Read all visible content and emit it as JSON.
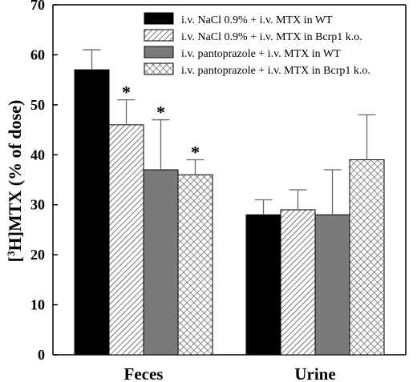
{
  "chart_data": {
    "type": "bar",
    "categories": [
      "Feces",
      "Urine"
    ],
    "ylabel": "[³H]MTX (% of dose)",
    "ylabel_parts": {
      "open": "[",
      "sup": "3",
      "rest": "H]MTX (% of dose)"
    },
    "ylim": [
      0,
      70
    ],
    "yticks": [
      0,
      10,
      20,
      30,
      40,
      50,
      60,
      70
    ],
    "legend_position": "top-right",
    "series": [
      {
        "name": "i.v. NaCl 0.9% + i.v. MTX in WT",
        "values": [
          57,
          28
        ],
        "errors": [
          4,
          3
        ],
        "pattern": "solid-black"
      },
      {
        "name": "i.v. NaCl 0.9% + i.v. MTX in Bcrp1 k.o.",
        "values": [
          46,
          29
        ],
        "errors": [
          5,
          4
        ],
        "pattern": "diagonal-hatch"
      },
      {
        "name": "i.v. pantoprazole + i.v. MTX in WT",
        "values": [
          37,
          28
        ],
        "errors": [
          10,
          9
        ],
        "pattern": "solid-gray"
      },
      {
        "name": "i.v. pantoprazole + i.v. MTX in Bcrp1 k.o.",
        "values": [
          36,
          39
        ],
        "errors": [
          3,
          9
        ],
        "pattern": "crosshatch"
      }
    ],
    "significance_marker": "*",
    "significance": [
      {
        "category": 0,
        "series": 1
      },
      {
        "category": 0,
        "series": 2
      },
      {
        "category": 0,
        "series": 3
      }
    ]
  },
  "colors": {
    "solid_black": "#000000",
    "solid_gray": "#7a7a7a",
    "hatch_line": "#555555",
    "axis": "#000000"
  }
}
